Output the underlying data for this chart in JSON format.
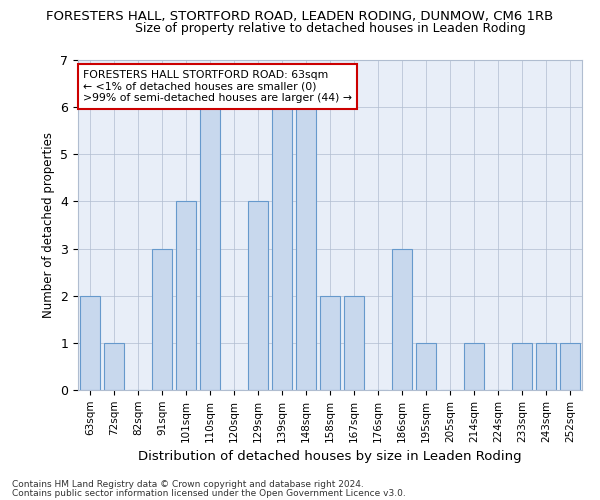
{
  "title_main": "FORESTERS HALL, STORTFORD ROAD, LEADEN RODING, DUNMOW, CM6 1RB",
  "title_sub": "Size of property relative to detached houses in Leaden Roding",
  "xlabel": "Distribution of detached houses by size in Leaden Roding",
  "ylabel": "Number of detached properties",
  "categories": [
    "63sqm",
    "72sqm",
    "82sqm",
    "91sqm",
    "101sqm",
    "110sqm",
    "120sqm",
    "129sqm",
    "139sqm",
    "148sqm",
    "158sqm",
    "167sqm",
    "176sqm",
    "186sqm",
    "195sqm",
    "205sqm",
    "214sqm",
    "224sqm",
    "233sqm",
    "243sqm",
    "252sqm"
  ],
  "values": [
    2,
    1,
    0,
    3,
    4,
    6,
    0,
    4,
    6,
    6,
    2,
    2,
    0,
    3,
    1,
    0,
    1,
    0,
    1,
    1,
    1
  ],
  "bar_color": "#c8d8ed",
  "bar_edge_color": "#6699cc",
  "annotation_text": "FORESTERS HALL STORTFORD ROAD: 63sqm\n← <1% of detached houses are smaller (0)\n>99% of semi-detached houses are larger (44) →",
  "annotation_box_facecolor": "#ffffff",
  "annotation_box_edge": "#cc0000",
  "ylim": [
    0,
    7
  ],
  "yticks": [
    0,
    1,
    2,
    3,
    4,
    5,
    6,
    7
  ],
  "footnote1": "Contains HM Land Registry data © Crown copyright and database right 2024.",
  "footnote2": "Contains public sector information licensed under the Open Government Licence v3.0.",
  "background_color": "#e8eef8",
  "grid_color": "#b0bdd0",
  "title_main_fontsize": 9.5,
  "title_sub_fontsize": 9.0,
  "xlabel_fontsize": 9.5,
  "ylabel_fontsize": 8.5
}
